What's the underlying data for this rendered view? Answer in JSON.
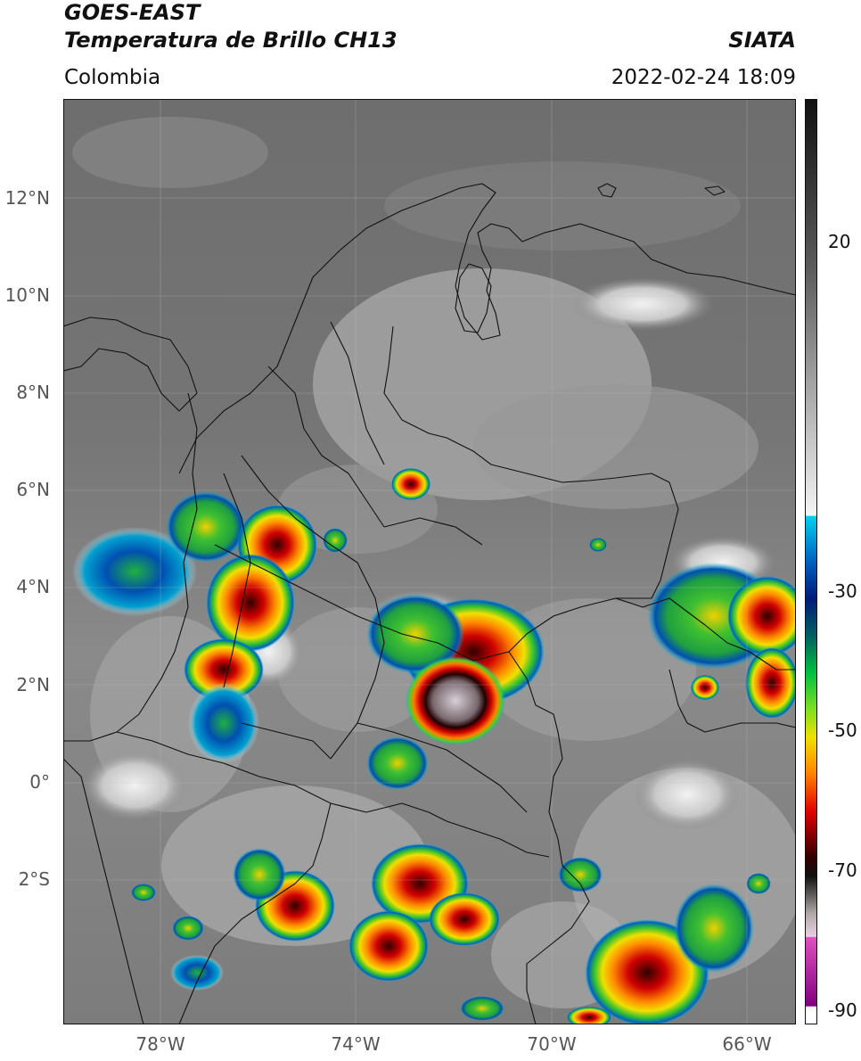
{
  "header": {
    "satellite": "GOES-EAST",
    "product": "Temperatura de Brillo CH13",
    "region": "Colombia",
    "institution": "SIATA",
    "timestamp": "2022-02-24 18:09"
  },
  "map": {
    "lat_labels": [
      "12°N",
      "10°N",
      "8°N",
      "6°N",
      "4°N",
      "2°N",
      "0°",
      "2°S"
    ],
    "lon_labels": [
      "78°W",
      "74°W",
      "70°W",
      "66°W"
    ],
    "extent": {
      "lon": [
        -80,
        -65
      ],
      "lat": [
        -5,
        14
      ]
    }
  },
  "colorbar": {
    "tick_labels": [
      "20",
      "-30",
      "-50",
      "-70",
      "-90"
    ],
    "colors": [
      "#111111",
      "#6a6a6a",
      "#f4f4f4",
      "#00a8d8",
      "#001a7a",
      "#00c040",
      "#f0e000",
      "#ff7000",
      "#e00000",
      "#2a0000",
      "#b0a8a8",
      "#e050c0",
      "#800080"
    ]
  }
}
